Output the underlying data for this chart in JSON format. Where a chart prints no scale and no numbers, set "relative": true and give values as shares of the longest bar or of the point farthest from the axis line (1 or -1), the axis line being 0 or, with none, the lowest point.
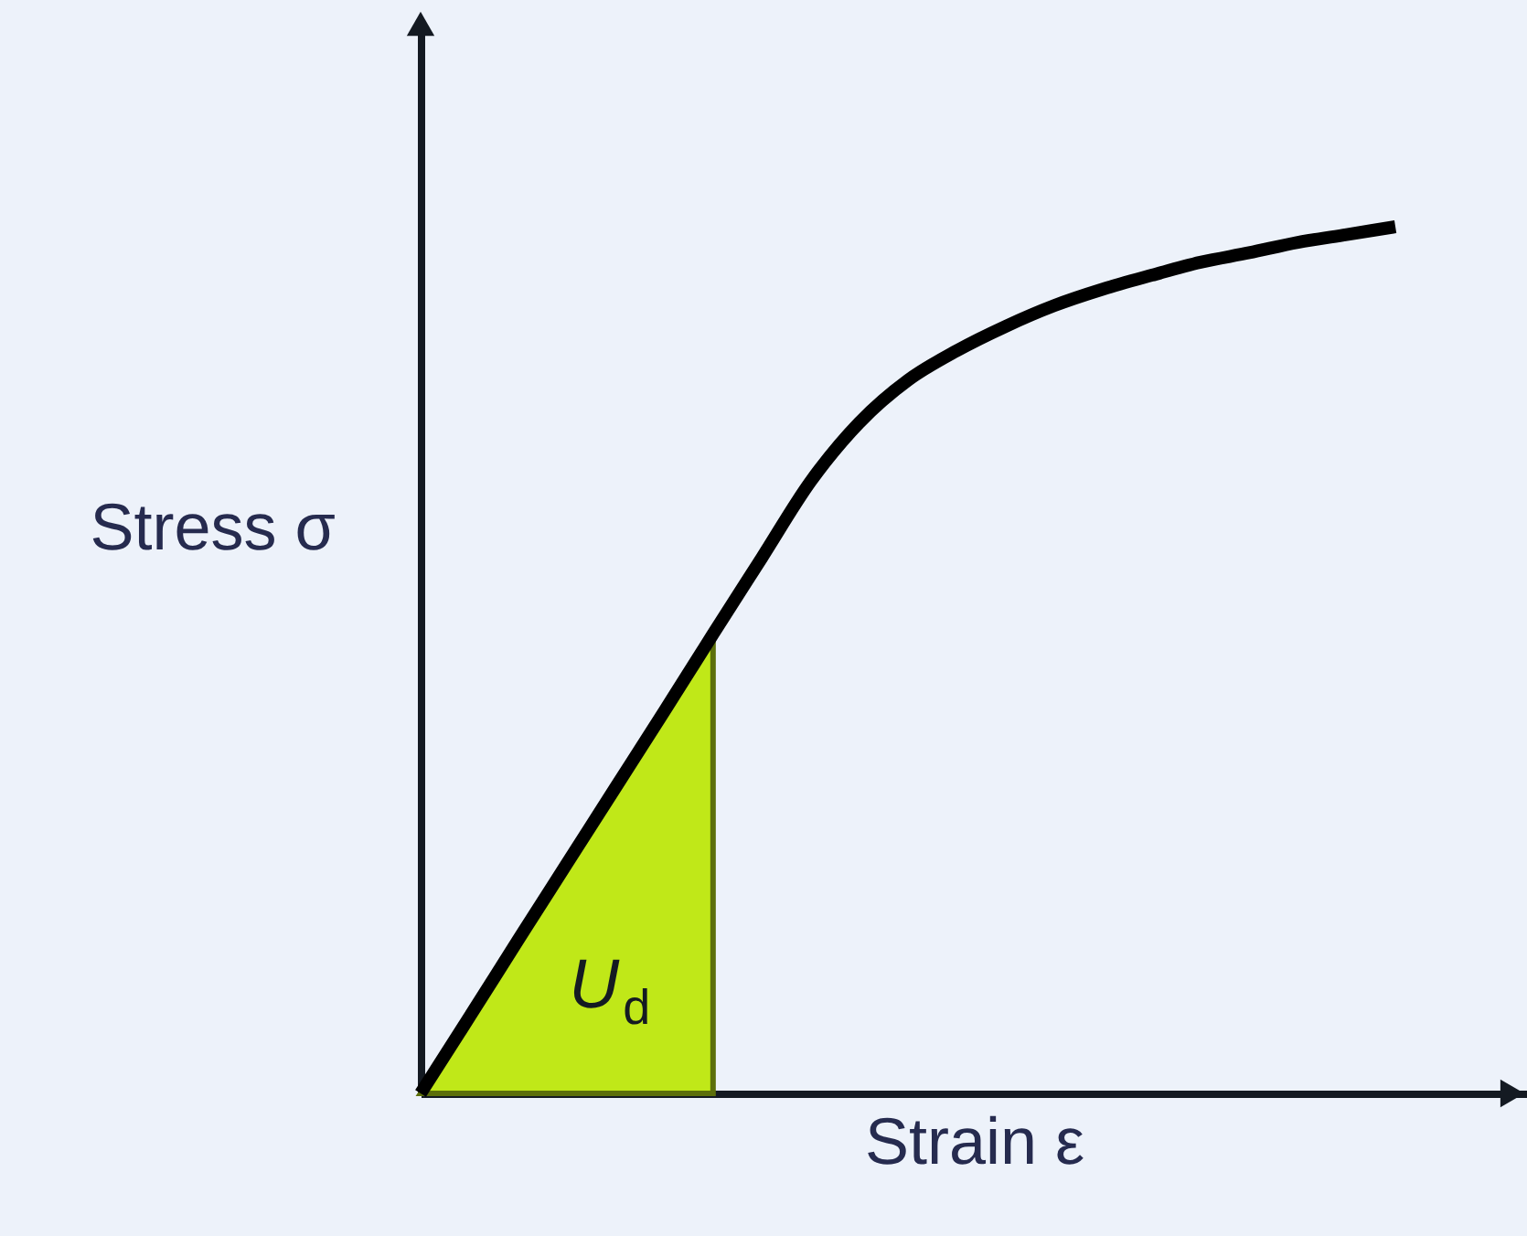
{
  "chart_data": {
    "type": "line",
    "relative": true,
    "xlabel": "Strain ε",
    "ylabel": "Stress σ",
    "categories": [
      null,
      null,
      null,
      null,
      null,
      null,
      null,
      null,
      null,
      null,
      null,
      null,
      null,
      null,
      null,
      null,
      null,
      null,
      null,
      null,
      null
    ],
    "series": [
      {
        "type": "area",
        "name": "U$_{d}$",
        "color": "#c0e818",
        "values": [
          0,
          0.088,
          0.177,
          0.265,
          0.353,
          0.441,
          0.53,
          null,
          null,
          null,
          null,
          null,
          null,
          null,
          null,
          null,
          null,
          null,
          null,
          null,
          null
        ]
      },
      {
        "color": "#000000",
        "values": [
          0,
          0.088,
          0.177,
          0.265,
          0.353,
          0.441,
          0.53,
          0.618,
          0.706,
          0.774,
          0.823,
          0.857,
          0.885,
          0.909,
          0.928,
          0.944,
          0.959,
          0.97,
          0.982,
          0.991,
          1.0
        ]
      }
    ],
    "grid": false,
    "tick_labels": false,
    "marker": "none",
    "line_style": "solid"
  }
}
